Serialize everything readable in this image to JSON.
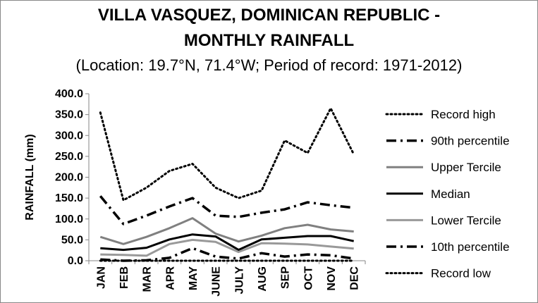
{
  "chart_data": {
    "type": "line",
    "title": "VILLA VASQUEZ, DOMINICAN REPUBLIC - MONTHLY RAINFALL",
    "title_line1": "VILLA VASQUEZ, DOMINICAN REPUBLIC -",
    "title_line2": "MONTHLY RAINFALL",
    "subtitle": "(Location: 19.7°N, 71.4°W; Period of record: 1971-2012)",
    "xlabel": "",
    "ylabel": "RAINFALL (mm)",
    "ylim": [
      0,
      400
    ],
    "ytick_values": [
      0,
      50,
      100,
      150,
      200,
      250,
      300,
      350,
      400
    ],
    "ytick_labels": [
      "0.0",
      "50.0",
      "100.0",
      "150.0",
      "200.0",
      "250.0",
      "300.0",
      "350.0",
      "400.0"
    ],
    "grid": false,
    "legend_position": "right",
    "categories": [
      "JAN",
      "FEB",
      "MAR",
      "APR",
      "MAY",
      "JUNE",
      "JULY",
      "AUG",
      "SEP",
      "OCT",
      "NOV",
      "DEC"
    ],
    "series": [
      {
        "name": "Record high",
        "style": "dotted",
        "color": "#000000",
        "values": [
          355,
          145,
          175,
          215,
          232,
          175,
          150,
          168,
          288,
          258,
          365,
          255
        ]
      },
      {
        "name": "90th percentile",
        "style": "dashdot",
        "color": "#000000",
        "values": [
          155,
          88,
          108,
          130,
          150,
          108,
          105,
          115,
          123,
          140,
          133,
          127
        ]
      },
      {
        "name": "Upper Tercile",
        "style": "solid",
        "color": "#808080",
        "values": [
          57,
          40,
          57,
          78,
          102,
          65,
          46,
          60,
          78,
          86,
          75,
          70
        ]
      },
      {
        "name": "Median",
        "style": "solid",
        "color": "#000000",
        "values": [
          30,
          26,
          31,
          51,
          63,
          58,
          26,
          51,
          55,
          59,
          59,
          47
        ]
      },
      {
        "name": "Lower Tercile",
        "style": "solid",
        "color": "#999999",
        "values": [
          15,
          14,
          12,
          40,
          50,
          45,
          21,
          42,
          41,
          39,
          34,
          29
        ]
      },
      {
        "name": "10th percentile",
        "style": "dashdot",
        "color": "#000000",
        "values": [
          3,
          0,
          1,
          7,
          30,
          10,
          5,
          18,
          10,
          15,
          13,
          5
        ]
      },
      {
        "name": "Record low",
        "style": "dotted",
        "color": "#000000",
        "values": [
          0,
          0,
          0,
          0,
          0,
          0,
          0,
          0,
          0,
          0,
          0,
          0
        ]
      }
    ]
  }
}
